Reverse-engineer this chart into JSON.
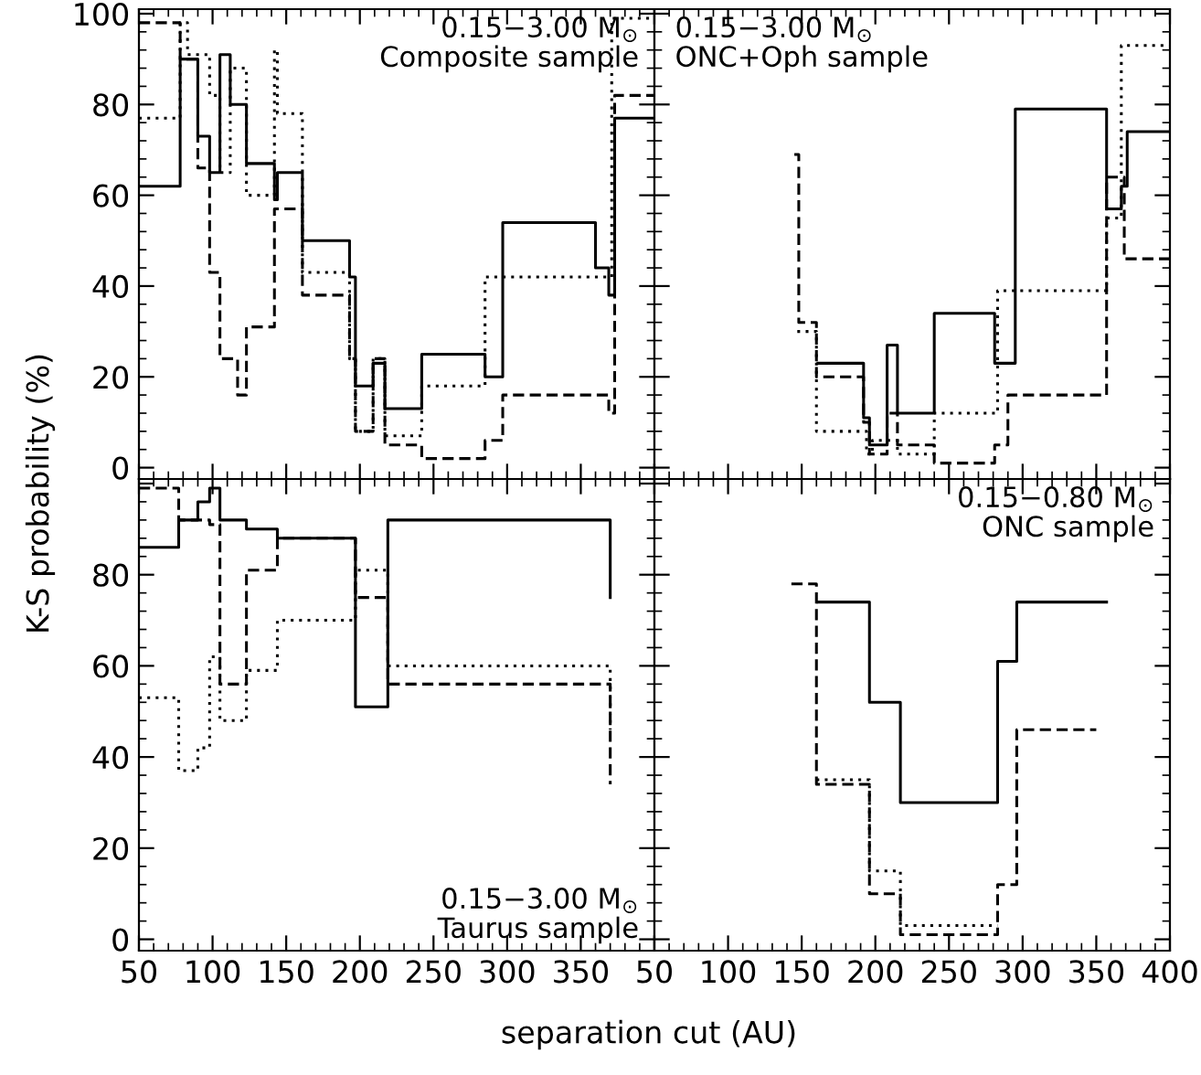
{
  "chart_data": [
    {
      "type": "step",
      "ylabel": "K-S probability (%)",
      "annotations": [
        "0.15−3.00 M$_{⊙}$",
        "Composite sample"
      ],
      "xlim": [
        50,
        400
      ],
      "ylim": [
        -2.5,
        101
      ],
      "yticks": [
        0,
        20,
        40,
        60,
        80,
        100
      ],
      "tick_labels": "y",
      "grid": false,
      "series": [
        {
          "color": "#000000",
          "line_style": "solid",
          "x": [
            50,
            78,
            90,
            98,
            105,
            112,
            123,
            142,
            144,
            161,
            193,
            197,
            209,
            217,
            242,
            285,
            297,
            360,
            369,
            373,
            400
          ],
          "values": [
            62,
            90,
            73,
            65,
            91,
            80,
            67,
            59,
            65,
            50,
            42,
            18,
            23,
            13,
            25,
            20,
            54,
            44,
            38,
            77,
            77
          ]
        },
        {
          "color": "#000000",
          "line_style": "dotted",
          "x": [
            50,
            78,
            83,
            98,
            105,
            112,
            123,
            142,
            144,
            161,
            193,
            197,
            209,
            217,
            242,
            285,
            371,
            400
          ],
          "values": [
            77,
            98,
            91,
            82,
            65,
            88,
            60,
            92,
            78,
            43,
            24,
            8,
            24,
            7,
            18,
            42,
            99,
            99
          ]
        },
        {
          "color": "#000000",
          "line_style": "dashed",
          "x": [
            50,
            78,
            90,
            98,
            105,
            117,
            123,
            142,
            161,
            193,
            197,
            209,
            217,
            242,
            285,
            297,
            369,
            373,
            400
          ],
          "values": [
            98,
            90,
            66,
            43,
            24,
            16,
            31,
            57,
            38,
            24,
            8,
            24,
            5,
            2,
            6,
            16,
            12,
            82,
            82
          ]
        }
      ]
    },
    {
      "type": "step",
      "annotations": [
        "0.15−3.00 M$_{⊙}$",
        "ONC+Oph sample"
      ],
      "xlim": [
        50,
        400
      ],
      "ylim": [
        -2.5,
        101
      ],
      "yticks": [
        {
          "value": 0,
          "label": null
        },
        {
          "value": 20,
          "label": null
        },
        {
          "value": 40,
          "label": null
        },
        {
          "value": 60,
          "label": null
        },
        {
          "value": 80,
          "label": null
        },
        {
          "value": 100,
          "label": null
        }
      ],
      "tick_labels": false,
      "grid": false,
      "series": [
        {
          "color": "#000000",
          "line_style": "solid",
          "x": [
            161,
            192,
            196,
            208,
            215,
            240,
            281,
            295,
            357,
            367,
            371,
            400
          ],
          "values": [
            23,
            11,
            5,
            27,
            12,
            34,
            23,
            79,
            57,
            62,
            74,
            74
          ]
        },
        {
          "color": "#000000",
          "line_style": "dotted",
          "x": [
            147,
            160,
            194,
            198,
            215,
            240,
            283,
            357,
            367,
            400
          ],
          "values": [
            30,
            8,
            3,
            6,
            3,
            12,
            39,
            55,
            93,
            93
          ]
        },
        {
          "color": "#000000",
          "line_style": "dashed",
          "x": [
            145,
            148,
            160,
            192,
            196,
            208,
            215,
            240,
            281,
            290,
            357,
            369,
            400
          ],
          "values": [
            69,
            32,
            20,
            10,
            3,
            12,
            5,
            1,
            5,
            16,
            64,
            46,
            46
          ]
        }
      ]
    },
    {
      "type": "step",
      "xlabel": "separation cut (AU)",
      "annotations": [
        "0.15−3.00 M$_{⊙}$",
        "Taurus sample"
      ],
      "xlim": [
        50,
        400
      ],
      "ylim": [
        -2.5,
        101
      ],
      "xticks": [
        50,
        100,
        150,
        200,
        250,
        300,
        350,
        {
          "value": 400,
          "label": null
        }
      ],
      "yticks": [
        0,
        20,
        40,
        60,
        80,
        {
          "value": 100,
          "label": null
        }
      ],
      "grid": false,
      "series": [
        {
          "color": "#000000",
          "line_style": "solid",
          "x": [
            50,
            77,
            90,
            98,
            105,
            123,
            144,
            197,
            219,
            370
          ],
          "values": [
            86,
            92,
            96,
            99,
            92,
            90,
            88,
            51,
            92,
            75
          ]
        },
        {
          "color": "#000000",
          "line_style": "dotted",
          "x": [
            50,
            77,
            90,
            98,
            105,
            123,
            144,
            197,
            219,
            370
          ],
          "values": [
            53,
            37,
            42,
            62,
            48,
            59,
            70,
            81,
            60,
            46
          ]
        },
        {
          "color": "#000000",
          "line_style": "dashed",
          "x": [
            50,
            77,
            98,
            105,
            123,
            144,
            197,
            219,
            370
          ],
          "values": [
            99,
            92,
            91,
            56,
            81,
            88,
            75,
            56,
            34
          ]
        }
      ]
    },
    {
      "type": "step",
      "annotations": [
        "0.15−0.80 M$_{⊙}$",
        "ONC sample"
      ],
      "xlim": [
        50,
        400
      ],
      "ylim": [
        -2.5,
        101
      ],
      "xticks": [
        50,
        100,
        150,
        200,
        250,
        300,
        350,
        400
      ],
      "yticks": [
        {
          "value": 0,
          "label": null
        },
        {
          "value": 20,
          "label": null
        },
        {
          "value": 40,
          "label": null
        },
        {
          "value": 60,
          "label": null
        },
        {
          "value": 80,
          "label": null
        },
        {
          "value": 100,
          "label": null
        }
      ],
      "tick_labels": "x",
      "grid": false,
      "series": [
        {
          "color": "#000000",
          "line_style": "solid",
          "x": [
            161,
            196,
            217,
            283,
            296,
            357
          ],
          "values": [
            74,
            52,
            30,
            61,
            74,
            74
          ]
        },
        {
          "color": "#000000",
          "line_style": "dotted",
          "x": [
            160,
            196,
            217,
            283
          ],
          "values": [
            35,
            15,
            3,
            3
          ]
        },
        {
          "color": "#000000",
          "line_style": "dashed",
          "x": [
            143,
            160,
            196,
            217,
            283,
            296,
            350
          ],
          "values": [
            78,
            34,
            10,
            1,
            12,
            46,
            46
          ]
        }
      ]
    }
  ]
}
